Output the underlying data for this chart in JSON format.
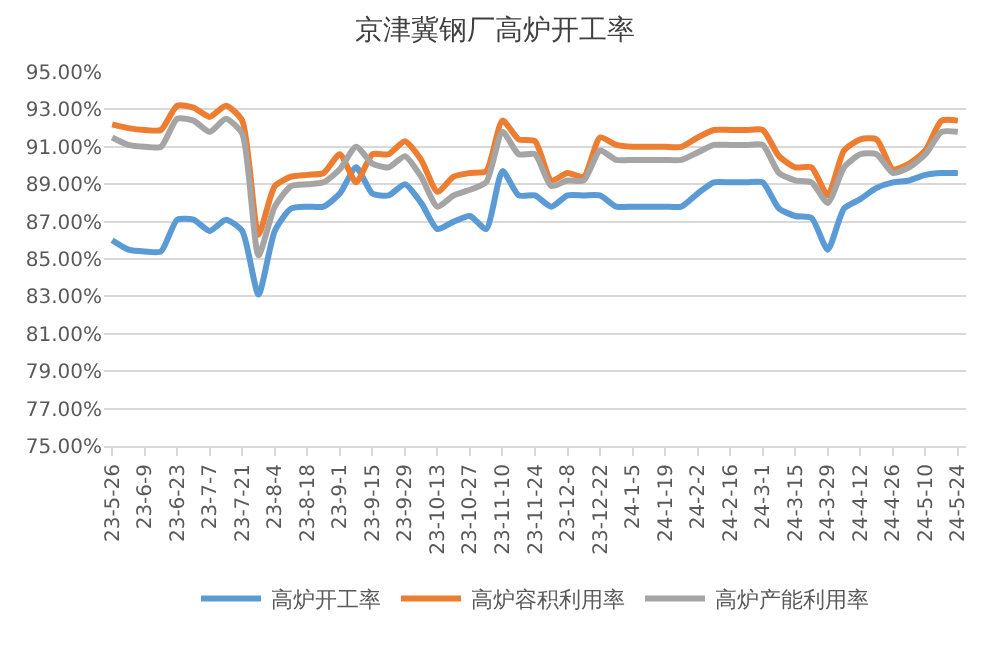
{
  "chart_data": {
    "type": "line",
    "title": "京津冀钢厂高炉开工率",
    "categories": [
      "23-5-26",
      null,
      "23-6-9",
      null,
      "23-6-23",
      null,
      "23-7-7",
      null,
      "23-7-21",
      null,
      "23-8-4",
      null,
      "23-8-18",
      null,
      "23-9-1",
      null,
      "23-9-15",
      null,
      "23-9-29",
      null,
      "23-10-13",
      null,
      "23-10-27",
      null,
      "23-11-10",
      null,
      "23-11-24",
      null,
      "23-12-8",
      null,
      "23-12-22",
      null,
      "24-1-5",
      null,
      "24-1-19",
      null,
      "24-2-2",
      null,
      "24-2-16",
      null,
      "24-3-1",
      null,
      "24-3-15",
      null,
      "24-3-29",
      null,
      "24-4-12",
      null,
      "24-4-26",
      null,
      "24-5-10",
      null,
      "24-5-24"
    ],
    "series": [
      {
        "name": "高炉开工率",
        "color": "#5b9bd5",
        "values": [
          86.0,
          85.5,
          85.4,
          85.4,
          87.1,
          87.1,
          86.5,
          87.1,
          86.5,
          83.1,
          86.5,
          87.7,
          87.8,
          87.8,
          88.5,
          89.9,
          88.5,
          88.4,
          89.0,
          88.0,
          86.6,
          87.0,
          87.3,
          86.6,
          89.7,
          88.4,
          88.4,
          87.8,
          88.4,
          88.4,
          88.4,
          87.8,
          87.8,
          87.8,
          87.8,
          87.8,
          88.5,
          89.1,
          89.1,
          89.1,
          89.1,
          87.7,
          87.3,
          87.2,
          85.5,
          87.7,
          88.2,
          88.8,
          89.1,
          89.2,
          89.5,
          89.6,
          89.6
        ]
      },
      {
        "name": "高炉容积利用率",
        "color": "#ed7d31",
        "values": [
          92.2,
          92.0,
          91.9,
          91.9,
          93.2,
          93.1,
          92.6,
          93.2,
          92.4,
          86.3,
          88.9,
          89.4,
          89.5,
          89.6,
          90.6,
          89.1,
          90.6,
          90.6,
          91.3,
          90.3,
          88.6,
          89.4,
          89.6,
          89.7,
          92.4,
          91.4,
          91.3,
          89.2,
          89.6,
          89.4,
          91.5,
          91.1,
          91.0,
          91.0,
          91.0,
          91.0,
          91.5,
          91.9,
          91.9,
          91.9,
          91.9,
          90.5,
          89.9,
          89.9,
          88.4,
          90.8,
          91.4,
          91.4,
          89.8,
          90.1,
          90.8,
          92.4,
          92.4
        ]
      },
      {
        "name": "高炉产能利用率",
        "color": "#a5a5a5",
        "values": [
          91.5,
          91.1,
          91.0,
          91.0,
          92.5,
          92.4,
          91.8,
          92.5,
          91.7,
          85.2,
          87.8,
          88.9,
          89.0,
          89.1,
          89.8,
          91.0,
          90.1,
          89.9,
          90.5,
          89.4,
          87.8,
          88.4,
          88.7,
          89.1,
          91.8,
          90.6,
          90.6,
          88.9,
          89.2,
          89.2,
          90.8,
          90.3,
          90.3,
          90.3,
          90.3,
          90.3,
          90.7,
          91.1,
          91.1,
          91.1,
          91.1,
          89.6,
          89.2,
          89.1,
          88.0,
          89.9,
          90.6,
          90.6,
          89.6,
          89.9,
          90.6,
          91.8,
          91.8
        ]
      }
    ],
    "ylim": [
      75,
      95
    ],
    "yticks": [
      {
        "value": 75,
        "label": "75.00%"
      },
      {
        "value": 77,
        "label": "77.00%"
      },
      {
        "value": 79,
        "label": "79.00%"
      },
      {
        "value": 81,
        "label": "81.00%"
      },
      {
        "value": 83,
        "label": "83.00%"
      },
      {
        "value": 85,
        "label": "85.00%"
      },
      {
        "value": 87,
        "label": "87.00%"
      },
      {
        "value": 89,
        "label": "89.00%"
      },
      {
        "value": 91,
        "label": "91.00%"
      },
      {
        "value": 93,
        "label": "93.00%"
      },
      {
        "value": 95,
        "label": "95.00%"
      }
    ],
    "grid": "y",
    "legend": "bottom",
    "marker": "none",
    "line_style": "solid"
  }
}
